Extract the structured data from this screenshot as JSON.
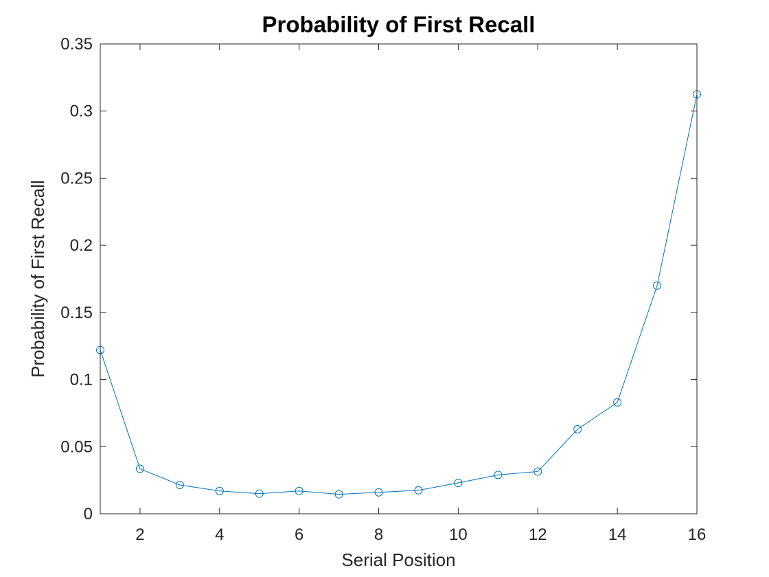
{
  "chart_data": {
    "type": "line",
    "title": "Probability of First Recall",
    "xlabel": "Serial Position",
    "ylabel": "Probability of First Recall",
    "xlim": [
      1,
      16
    ],
    "ylim": [
      0,
      0.35
    ],
    "xticks": [
      2,
      4,
      6,
      8,
      10,
      12,
      14,
      16
    ],
    "yticks": [
      0,
      0.05,
      0.1,
      0.15,
      0.2,
      0.25,
      0.3,
      0.35
    ],
    "xtick_labels": [
      "2",
      "4",
      "6",
      "8",
      "10",
      "12",
      "14",
      "16"
    ],
    "ytick_labels": [
      "0",
      "0.05",
      "0.1",
      "0.15",
      "0.2",
      "0.25",
      "0.3",
      "0.35"
    ],
    "grid": false,
    "box": true,
    "marker": "circle",
    "series": [
      {
        "color": "#0072BD",
        "x": [
          1,
          2,
          3,
          4,
          5,
          6,
          7,
          8,
          9,
          10,
          11,
          12,
          13,
          14,
          15,
          16
        ],
        "y": [
          0.122,
          0.0335,
          0.0215,
          0.017,
          0.015,
          0.017,
          0.0145,
          0.016,
          0.0175,
          0.023,
          0.029,
          0.0315,
          0.063,
          0.083,
          0.17,
          0.3125
        ]
      }
    ]
  }
}
